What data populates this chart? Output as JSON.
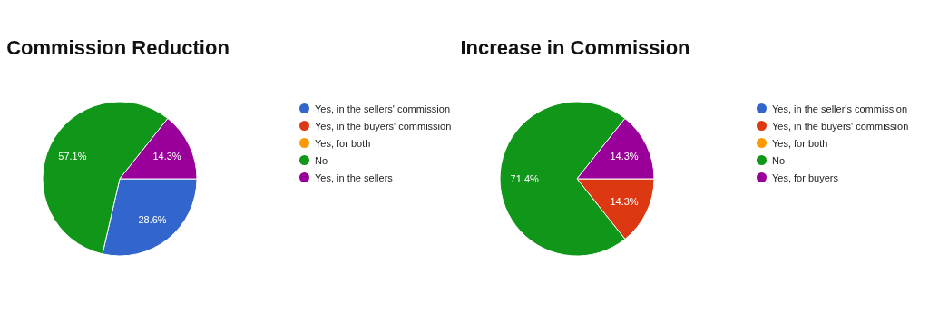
{
  "chart_data": [
    {
      "type": "pie",
      "title": "Commission Reduction",
      "categories": [
        "Yes, in the sellers' commission",
        "Yes, in the buyers' commission",
        "Yes, for both",
        "No",
        "Yes, in the sellers"
      ],
      "values": [
        28.6,
        0,
        0,
        57.1,
        14.3
      ],
      "colors": [
        "#3366cc",
        "#dc3912",
        "#ff9900",
        "#109618",
        "#990099"
      ],
      "value_labels": [
        "28.6%",
        null,
        null,
        "57.1%",
        "14.3%"
      ],
      "legend": "right"
    },
    {
      "type": "pie",
      "title": "Increase in Commission",
      "categories": [
        "Yes, in the seller's commission",
        "Yes, in the buyers' commission",
        "Yes, for both",
        "No",
        "Yes, for buyers"
      ],
      "values": [
        0,
        14.3,
        0,
        71.4,
        14.3
      ],
      "colors": [
        "#3366cc",
        "#dc3912",
        "#ff9900",
        "#109618",
        "#990099"
      ],
      "value_labels": [
        null,
        "14.3%",
        null,
        "71.4%",
        "14.3%"
      ],
      "legend": "right"
    }
  ]
}
